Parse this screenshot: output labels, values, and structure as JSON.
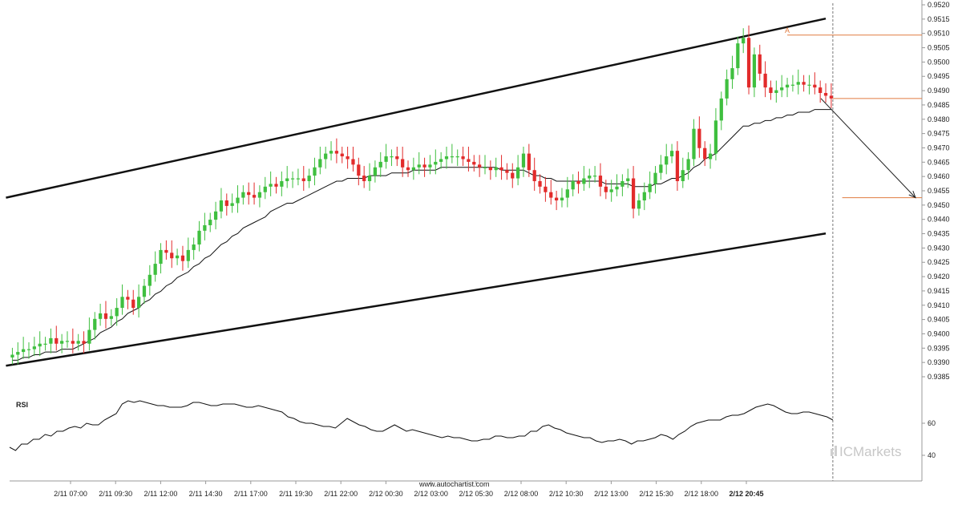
{
  "source_text": "www.autochartist.com",
  "brand": {
    "text": "ICMarkets",
    "accent": "#c7c7c7"
  },
  "colors": {
    "up": "#3fbf3f",
    "down": "#e22b2b",
    "level": "#e07b40",
    "channel": "#111111",
    "ma": "#111111"
  },
  "chart_data": {
    "type": "candlestick",
    "title": "",
    "y_range": [
      0.9385,
      0.952
    ],
    "y_ticks": [
      "0.9520",
      "0.9515",
      "0.9510",
      "0.9505",
      "0.9500",
      "0.9495",
      "0.9490",
      "0.9485",
      "0.9480",
      "0.9475",
      "0.9470",
      "0.9465",
      "0.9460",
      "0.9455",
      "0.9450",
      "0.9440",
      "0.9435",
      "0.9430",
      "0.9425",
      "0.9420",
      "0.9415",
      "0.9410",
      "0.9405",
      "0.9400",
      "0.9395",
      "0.9390",
      "0.9385"
    ],
    "x_labels": [
      "2/11 07:00",
      "2/11 09:30",
      "2/11 12:00",
      "2/11 14:30",
      "2/11 17:00",
      "2/11 19:30",
      "2/11 22:00",
      "2/12 00:30",
      "2/12 03:00",
      "2/12 05:30",
      "2/12 08:00",
      "2/12 10:30",
      "2/12 13:00",
      "2/12 15:30",
      "2/12 18:00",
      "2/12 20:45"
    ],
    "closes": [
      0.9393,
      0.9394,
      0.9395,
      0.9395,
      0.9396,
      0.9397,
      0.9397,
      0.9399,
      0.9397,
      0.9398,
      0.9398,
      0.9397,
      0.9398,
      0.9397,
      0.9402,
      0.9406,
      0.9408,
      0.9406,
      0.9407,
      0.941,
      0.9414,
      0.9413,
      0.941,
      0.9414,
      0.9418,
      0.9422,
      0.9426,
      0.9431,
      0.943,
      0.9428,
      0.9429,
      0.9427,
      0.9431,
      0.9433,
      0.9438,
      0.944,
      0.9442,
      0.9445,
      0.9449,
      0.9447,
      0.9448,
      0.945,
      0.9452,
      0.9451,
      0.945,
      0.9452,
      0.9454,
      0.9455,
      0.9454,
      0.9456,
      0.9457,
      0.9457,
      0.9457,
      0.9456,
      0.9458,
      0.9461,
      0.9464,
      0.9466,
      0.9467,
      0.9466,
      0.9465,
      0.9464,
      0.9462,
      0.9458,
      0.9456,
      0.9458,
      0.9461,
      0.9463,
      0.9465,
      0.9465,
      0.9464,
      0.9461,
      0.946,
      0.9461,
      0.9462,
      0.9461,
      0.9462,
      0.9463,
      0.9464,
      0.9465,
      0.9465,
      0.9465,
      0.9464,
      0.9463,
      0.9462,
      0.9461,
      0.9461,
      0.946,
      0.9461,
      0.946,
      0.9459,
      0.9457,
      0.9461,
      0.9466,
      0.946,
      0.9456,
      0.9454,
      0.9452,
      0.945,
      0.9449,
      0.945,
      0.9453,
      0.9456,
      0.9455,
      0.9457,
      0.9458,
      0.9458,
      0.9454,
      0.9452,
      0.9453,
      0.9454,
      0.9456,
      0.9457,
      0.9446,
      0.9449,
      0.9452,
      0.9455,
      0.9459,
      0.9462,
      0.9465,
      0.9467,
      0.9456,
      0.946,
      0.9464,
      0.9475,
      0.9468,
      0.9464,
      0.9466,
      0.9478,
      0.9486,
      0.9493,
      0.9497,
      0.9506,
      0.9508,
      0.949,
      0.9502,
      0.9495,
      0.949,
      0.9488,
      0.9489,
      0.949,
      0.9491,
      0.9491,
      0.9492,
      0.9491,
      0.9491,
      0.949,
      0.9488,
      0.9487,
      0.9486
    ],
    "ma_values": [
      0.9391,
      0.9391,
      0.9392,
      0.9392,
      0.9393,
      0.9393,
      0.9394,
      0.9394,
      0.9394,
      0.9395,
      0.9395,
      0.9395,
      0.9396,
      0.9397,
      0.9398,
      0.9399,
      0.9401,
      0.9402,
      0.9403,
      0.9405,
      0.9406,
      0.9408,
      0.9409,
      0.941,
      0.9412,
      0.9413,
      0.9415,
      0.9416,
      0.9418,
      0.9419,
      0.9421,
      0.9422,
      0.9423,
      0.9425,
      0.9426,
      0.9428,
      0.9429,
      0.9431,
      0.9433,
      0.9434,
      0.9436,
      0.9437,
      0.9439,
      0.944,
      0.9441,
      0.9442,
      0.9443,
      0.9445,
      0.9446,
      0.9447,
      0.9448,
      0.9448,
      0.9449,
      0.945,
      0.9451,
      0.9452,
      0.9453,
      0.9454,
      0.9455,
      0.9456,
      0.9456,
      0.9457,
      0.9457,
      0.9457,
      0.9457,
      0.9458,
      0.9458,
      0.9458,
      0.9458,
      0.9459,
      0.9459,
      0.9459,
      0.9459,
      0.946,
      0.946,
      0.946,
      0.946,
      0.946,
      0.9461,
      0.9461,
      0.9461,
      0.9461,
      0.9461,
      0.9461,
      0.9461,
      0.9461,
      0.9461,
      0.9461,
      0.9461,
      0.946,
      0.946,
      0.946,
      0.946,
      0.946,
      0.9459,
      0.9458,
      0.9458,
      0.9457,
      0.9457,
      0.9456,
      0.9456,
      0.9456,
      0.9456,
      0.9456,
      0.9456,
      0.9456,
      0.9456,
      0.9456,
      0.9455,
      0.9455,
      0.9455,
      0.9455,
      0.9455,
      0.9454,
      0.9454,
      0.9454,
      0.9454,
      0.9455,
      0.9455,
      0.9456,
      0.9457,
      0.9457,
      0.9458,
      0.9459,
      0.9461,
      0.9462,
      0.9464,
      0.9465,
      0.9466,
      0.9468,
      0.947,
      0.9472,
      0.9474,
      0.9476,
      0.9476,
      0.9477,
      0.9477,
      0.9478,
      0.9478,
      0.9479,
      0.9479,
      0.948,
      0.948,
      0.9481,
      0.9481,
      0.9481,
      0.9482,
      0.9482,
      0.9482,
      0.9482
    ],
    "channel_upper": [
      [
        0,
        0.945
      ],
      [
        148,
        0.9515
      ]
    ],
    "channel_lower": [
      [
        0,
        0.9389
      ],
      [
        148,
        0.9437
      ]
    ],
    "resistance_level": 0.9509,
    "current_level": 0.9486,
    "target_level": 0.945,
    "forecast_arrow": [
      [
        148,
        0.9486
      ],
      [
        165,
        0.945
      ]
    ],
    "point_label": "A",
    "rsi": {
      "label": "RSI",
      "ticks": [
        "60",
        "40"
      ],
      "range": [
        33,
        80
      ],
      "values": [
        45,
        43,
        47,
        47,
        50,
        50,
        53,
        52,
        55,
        55,
        57,
        58,
        57,
        60,
        59,
        59,
        62,
        64,
        66,
        72,
        74,
        73,
        74,
        73,
        72,
        71,
        71,
        70,
        70,
        70,
        71,
        73,
        73,
        72,
        71,
        71,
        72,
        72,
        72,
        71,
        70,
        70,
        71,
        70,
        69,
        68,
        67,
        64,
        63,
        61,
        60,
        60,
        59,
        58,
        58,
        57,
        60,
        63,
        61,
        59,
        58,
        56,
        55,
        55,
        57,
        59,
        57,
        55,
        56,
        55,
        54,
        53,
        52,
        51,
        52,
        51,
        51,
        50,
        49,
        49,
        50,
        50,
        52,
        52,
        51,
        51,
        52,
        52,
        55,
        55,
        58,
        59,
        57,
        56,
        54,
        53,
        52,
        51,
        51,
        49,
        48,
        49,
        49,
        50,
        49,
        47,
        49,
        49,
        50,
        51,
        53,
        52,
        50,
        53,
        55,
        58,
        60,
        61,
        62,
        62,
        62,
        64,
        65,
        65,
        66,
        68,
        70,
        71,
        72,
        71,
        69,
        67,
        66,
        66,
        67,
        67,
        66,
        65,
        64,
        62
      ]
    }
  }
}
